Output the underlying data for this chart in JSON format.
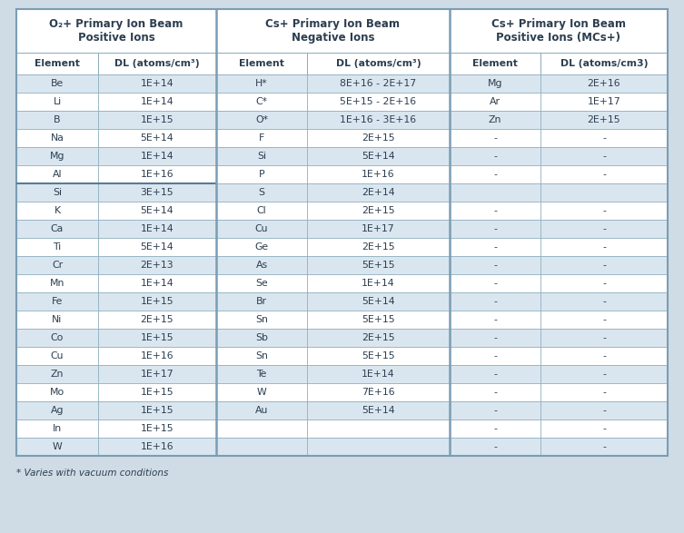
{
  "group_headers": [
    "O₂+ Primary Ion Beam\nPositive Ions",
    "Cs+ Primary Ion Beam\nNegative Ions",
    "Cs+ Primary Ion Beam\nPositive Ions (MCs+)"
  ],
  "sub_headers": [
    "Element",
    "DL (atoms/cm³)",
    "Element",
    "DL (atoms/cm³)",
    "Element",
    "DL (atoms/cm3)"
  ],
  "col1_data": [
    [
      "Be",
      "1E+14"
    ],
    [
      "Li",
      "1E+14"
    ],
    [
      "B",
      "1E+15"
    ],
    [
      "Na",
      "5E+14"
    ],
    [
      "Mg",
      "1E+14"
    ],
    [
      "Al",
      "1E+16"
    ],
    [
      "Si",
      "3E+15"
    ],
    [
      "K",
      "5E+14"
    ],
    [
      "Ca",
      "1E+14"
    ],
    [
      "Ti",
      "5E+14"
    ],
    [
      "Cr",
      "2E+13"
    ],
    [
      "Mn",
      "1E+14"
    ],
    [
      "Fe",
      "1E+15"
    ],
    [
      "Ni",
      "2E+15"
    ],
    [
      "Co",
      "1E+15"
    ],
    [
      "Cu",
      "1E+16"
    ],
    [
      "Zn",
      "1E+17"
    ],
    [
      "Mo",
      "1E+15"
    ],
    [
      "Ag",
      "1E+15"
    ],
    [
      "In",
      "1E+15"
    ],
    [
      "W",
      "1E+16"
    ]
  ],
  "col2_data": [
    [
      "H*",
      "8E+16 - 2E+17"
    ],
    [
      "C*",
      "5E+15 - 2E+16"
    ],
    [
      "O*",
      "1E+16 - 3E+16"
    ],
    [
      "F",
      "2E+15"
    ],
    [
      "Si",
      "5E+14"
    ],
    [
      "P",
      "1E+16"
    ],
    [
      "S",
      "2E+14"
    ],
    [
      "Cl",
      "2E+15"
    ],
    [
      "Cu",
      "1E+17"
    ],
    [
      "Ge",
      "2E+15"
    ],
    [
      "As",
      "5E+15"
    ],
    [
      "Se",
      "1E+14"
    ],
    [
      "Br",
      "5E+14"
    ],
    [
      "Sn",
      "5E+15"
    ],
    [
      "Sb",
      "2E+15"
    ],
    [
      "Sn",
      "5E+15"
    ],
    [
      "Te",
      "1E+14"
    ],
    [
      "W",
      "7E+16"
    ],
    [
      "Au",
      "5E+14"
    ],
    [
      "",
      ""
    ],
    [
      "",
      ""
    ]
  ],
  "col3_data": [
    [
      "Mg",
      "2E+16"
    ],
    [
      "Ar",
      "1E+17"
    ],
    [
      "Zn",
      "2E+15"
    ],
    [
      "-",
      "-"
    ],
    [
      "-",
      "-"
    ],
    [
      "-",
      "-"
    ],
    [
      "",
      ""
    ],
    [
      "-",
      "-"
    ],
    [
      "-",
      "-"
    ],
    [
      "-",
      "-"
    ],
    [
      "-",
      "-"
    ],
    [
      "-",
      "-"
    ],
    [
      "-",
      "-"
    ],
    [
      "-",
      "-"
    ],
    [
      "-",
      "-"
    ],
    [
      "-",
      "-"
    ],
    [
      "-",
      "-"
    ],
    [
      "-",
      "-"
    ],
    [
      "-",
      "-"
    ],
    [
      "-",
      "-"
    ],
    [
      "-",
      "-"
    ]
  ],
  "footnote": "* Varies with vacuum conditions",
  "fig_bg": "#cfdce6",
  "row_color_even": "#dae6ef",
  "row_color_odd": "#ffffff",
  "header_bg": "#ffffff",
  "border_color": "#8aabbd",
  "sep_color": "#7a9db5",
  "text_color": "#2c3e50",
  "si_border_color": "#5a7a95"
}
